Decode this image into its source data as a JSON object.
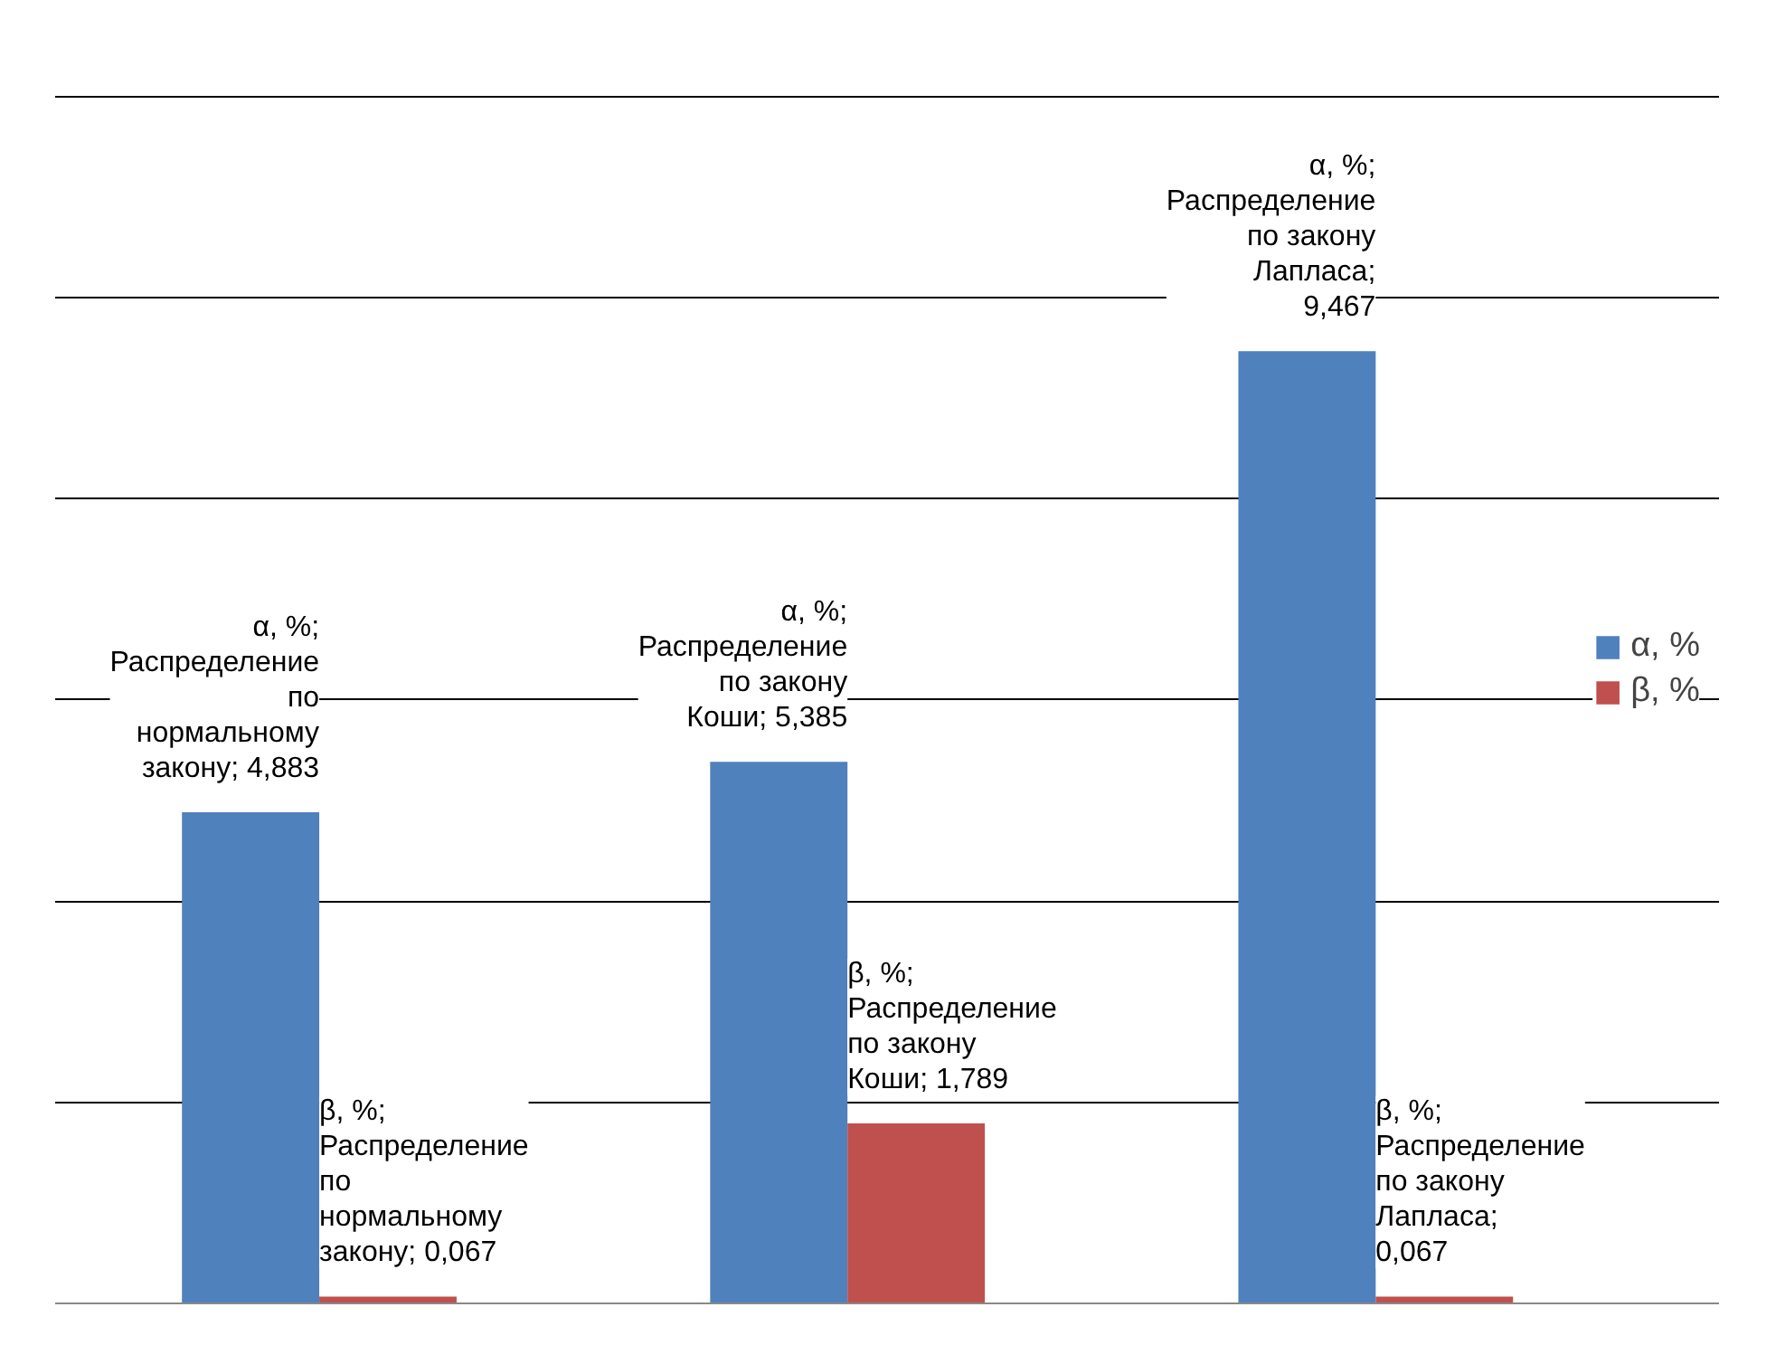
{
  "chart_data": {
    "type": "bar",
    "categories": [
      null,
      null,
      null
    ],
    "series": [
      {
        "name": "α, %",
        "color": "#4f81bd",
        "values": [
          4.883,
          5.385,
          9.467
        ],
        "value_labels": [
          "α, %; Распределение по нормальному закону; 4,883",
          "α, %; Распределение по закону Коши; 5,385",
          "α, %; Распределение по закону Лапласа; 9,467"
        ]
      },
      {
        "name": "β, %",
        "color": "#c0504d",
        "values": [
          0.067,
          1.789,
          0.067
        ],
        "value_labels": [
          "β, %; Распределение по нормальному закону; 0,067",
          "β, %; Распределение по закону Коши; 1,789",
          "β, %; Распределение по закону Лапласа; 0,067"
        ]
      }
    ],
    "grid": "y",
    "legend": "right",
    "tick_labels": false
  }
}
